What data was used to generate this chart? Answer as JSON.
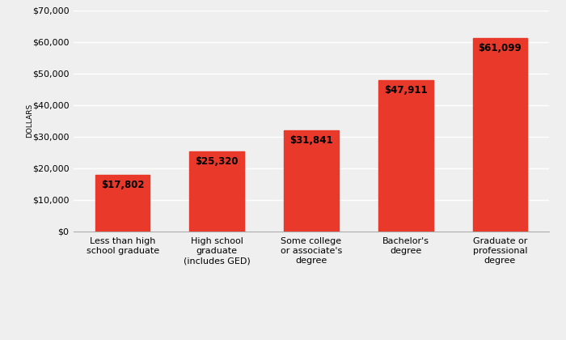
{
  "categories": [
    "Less than high\nschool graduate",
    "High school\ngraduate\n(includes GED)",
    "Some college\nor associate's\ndegree",
    "Bachelor's\ndegree",
    "Graduate or\nprofessional\ndegree"
  ],
  "values": [
    17802,
    25320,
    31841,
    47911,
    61099
  ],
  "labels": [
    "$17,802",
    "$25,320",
    "$31,841",
    "$47,911",
    "$61,099"
  ],
  "bar_color": "#e8392a",
  "background_color": "#efefef",
  "ylabel": "DOLLARS",
  "ylim": [
    0,
    70000
  ],
  "yticks": [
    0,
    10000,
    20000,
    30000,
    40000,
    50000,
    60000,
    70000
  ],
  "label_fontsize": 8.5,
  "xlabel_fontsize": 6.5,
  "ylabel_fontsize": 6.5,
  "tick_label_fontsize": 8.0,
  "bar_width": 0.58
}
